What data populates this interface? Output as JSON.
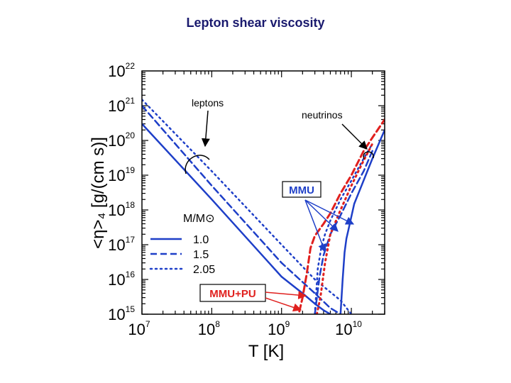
{
  "title": "Lepton shear viscosity",
  "chart_data": {
    "type": "line",
    "xscale": "log",
    "yscale": "log",
    "xlim": [
      10000000,
      30000000000
    ],
    "ylim": [
      1000000000000000.0,
      1e+22
    ],
    "xlabel": "T [K]",
    "ylabel": "<η>₄ [g/(cm s)]",
    "x_ticks": [
      {
        "base": "10",
        "exp": "7"
      },
      {
        "base": "10",
        "exp": "8"
      },
      {
        "base": "10",
        "exp": "9"
      },
      {
        "base": "10",
        "exp": "10"
      }
    ],
    "y_ticks": [
      {
        "base": "10",
        "exp": "15"
      },
      {
        "base": "10",
        "exp": "16"
      },
      {
        "base": "10",
        "exp": "17"
      },
      {
        "base": "10",
        "exp": "18"
      },
      {
        "base": "10",
        "exp": "19"
      },
      {
        "base": "10",
        "exp": "20"
      },
      {
        "base": "10",
        "exp": "21"
      },
      {
        "base": "10",
        "exp": "22"
      }
    ],
    "legend": {
      "title": "M/M⊙",
      "placement": "lower-left",
      "entries": [
        {
          "label": "1.0",
          "style": "solid"
        },
        {
          "label": "1.5",
          "style": "dashed"
        },
        {
          "label": "2.05",
          "style": "dotted"
        }
      ]
    },
    "annotations": [
      {
        "text": "leptons"
      },
      {
        "text": "neutrinos"
      },
      {
        "text": "MMU",
        "color": "#1e3fc8"
      },
      {
        "text": "MMU+PU",
        "color": "#e0201e"
      }
    ],
    "series": [
      {
        "group": "leptons",
        "style": "solid",
        "color": "#1e3fc8",
        "x": [
          10000000,
          100000000,
          1000000000,
          2000000000,
          3000000000,
          4000000000,
          5000000000
        ],
        "y": [
          3e+20,
          2e+18,
          1.2e+16,
          4000000000000000.0,
          2000000000000000.0,
          1300000000000000.0,
          1000000000000000.0
        ]
      },
      {
        "group": "leptons",
        "style": "dashed",
        "color": "#1e3fc8",
        "x": [
          10000000,
          100000000,
          1000000000,
          3000000000,
          5000000000,
          7000000000
        ],
        "y": [
          1e+21,
          5e+18,
          3e+16,
          4000000000000000.0,
          1500000000000000.0,
          1000000000000000.0
        ]
      },
      {
        "group": "leptons",
        "style": "dotted",
        "color": "#1e3fc8",
        "x": [
          10000000,
          100000000,
          1000000000,
          3000000000,
          7000000000,
          10000000000
        ],
        "y": [
          1.5e+21,
          1.3e+19,
          1e+17,
          1e+16,
          2500000000000000.0,
          1000000000000000.0
        ]
      },
      {
        "group": "neutrinos MMU",
        "style": "solid",
        "color": "#1e3fc8",
        "x": [
          7000000000,
          7500000000,
          8000000000,
          8500000000,
          9000000000,
          11000000000,
          14000000000,
          20000000000,
          30000000000
        ],
        "y": [
          1000000000000000.0,
          1e+16,
          6e+16,
          1.5e+17,
          2.5e+17,
          1.5e+18,
          5e+18,
          3e+19,
          2e+20
        ]
      },
      {
        "group": "neutrinos MMU",
        "style": "dashed",
        "color": "#1e3fc8",
        "x": [
          3000000000,
          3500000000,
          4000000000,
          5000000000,
          7000000000,
          10000000000,
          15000000000,
          20000000000
        ],
        "y": [
          1000000000000000.0,
          1.2e+16,
          5e+16,
          2e+17,
          7e+17,
          3e+18,
          1.3e+19,
          5e+19
        ]
      },
      {
        "group": "neutrinos MMU",
        "style": "dotted",
        "color": "#1e3fc8",
        "x": [
          3000000000,
          3300000000,
          3700000000,
          4200000000,
          5000000000,
          7000000000,
          10000000000,
          15000000000,
          20000000000
        ],
        "y": [
          1000000000000000.0,
          2e+16,
          8e+16,
          2e+17,
          5e+17,
          2e+18,
          7e+18,
          3e+19,
          8e+19
        ]
      },
      {
        "group": "neutrinos MMU+PU",
        "style": "dashed",
        "color": "#e0201e",
        "x": [
          1800000000,
          2000000000,
          2300000000,
          2600000000,
          3000000000,
          4000000000,
          5000000000,
          7000000000,
          10000000000,
          15000000000,
          20000000000,
          30000000000
        ],
        "y": [
          1200000000000000.0,
          3000000000000000.0,
          1.5e+16,
          8e+16,
          1.8e+17,
          4e+17,
          8e+17,
          3e+18,
          1e+19,
          5e+19,
          1.2e+20,
          4e+20
        ]
      },
      {
        "group": "neutrinos MMU+PU",
        "style": "dotted",
        "color": "#e0201e",
        "x": [
          3200000000,
          3600000000,
          4200000000,
          5000000000,
          7000000000,
          10000000000,
          14000000000,
          20000000000
        ],
        "y": [
          1000000000000000.0,
          3000000000000000.0,
          3e+16,
          2e+17,
          1e+18,
          5e+18,
          2e+19,
          8e+19
        ]
      }
    ]
  }
}
